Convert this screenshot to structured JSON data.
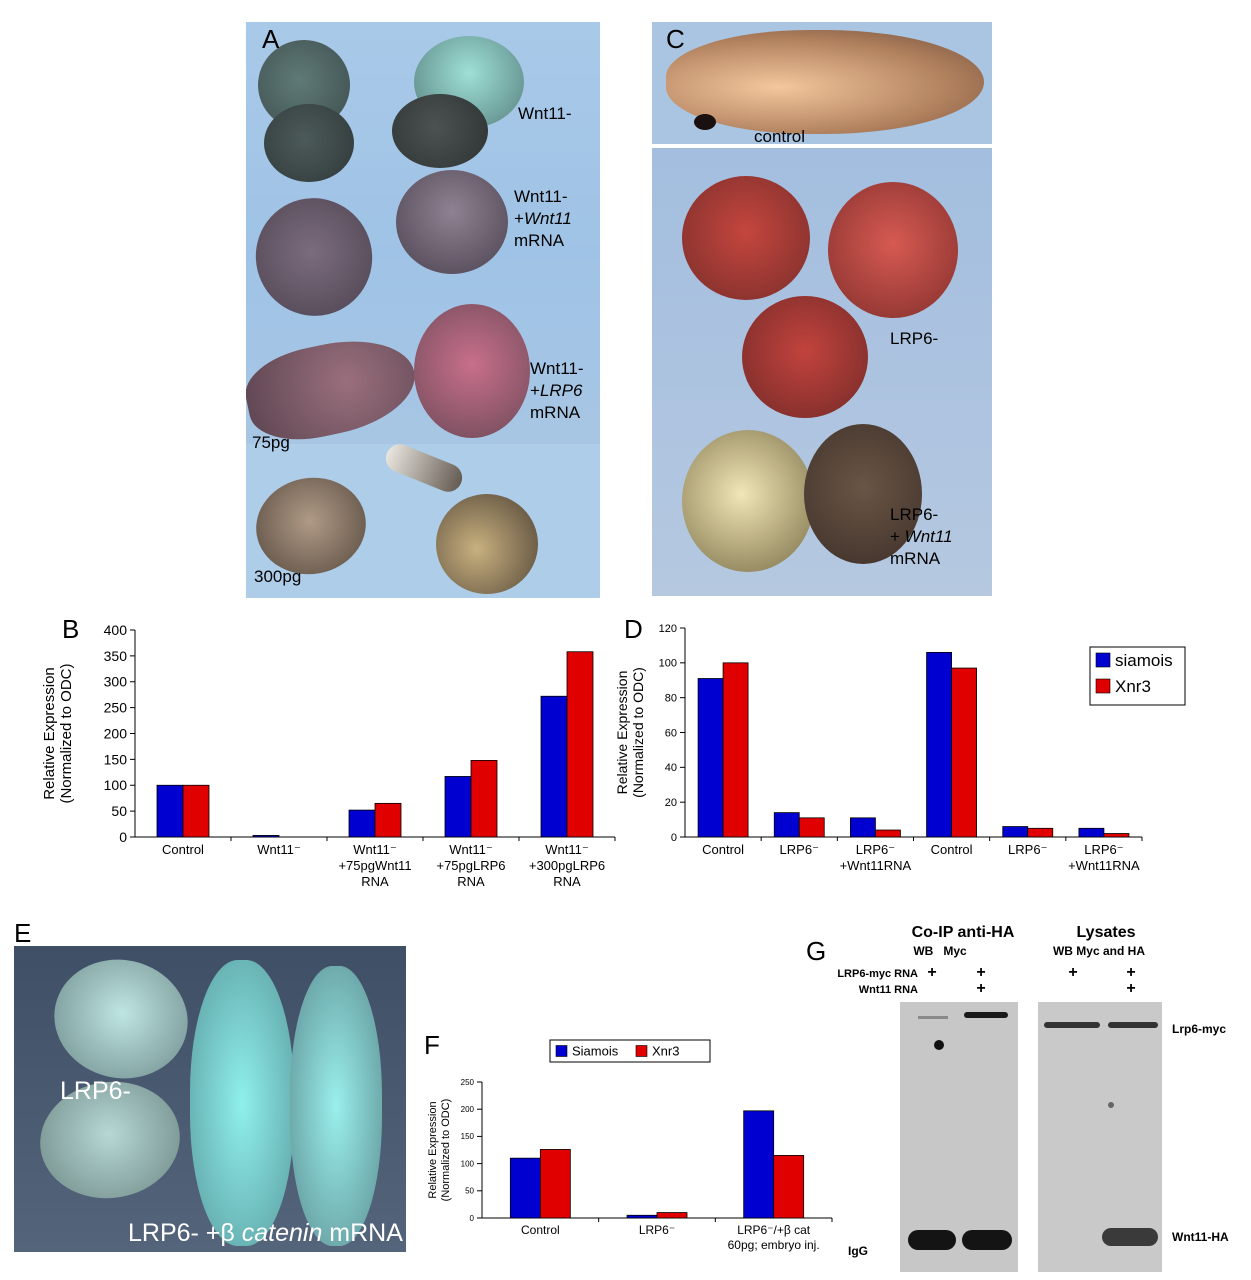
{
  "panels": {
    "A": {
      "letter": "A",
      "labels": {
        "wnt11_minus": "Wnt11-",
        "rescue_wnt11_line1": "Wnt11-",
        "rescue_wnt11_line2a": "+",
        "rescue_wnt11_line2b": "Wnt11",
        "rescue_wnt11_line3": "mRNA",
        "rescue_lrp6_line1": "Wnt11-",
        "rescue_lrp6_line2a": "+",
        "rescue_lrp6_line2b": "LRP6",
        "rescue_lrp6_line3": "mRNA",
        "dose_75": "75pg",
        "dose_300": "300pg"
      }
    },
    "B": {
      "letter": "B"
    },
    "C": {
      "letter": "C",
      "labels": {
        "control": "control",
        "lrp6_minus": "LRP6-",
        "rescue_line1": "LRP6-",
        "rescue_line2a": "+ ",
        "rescue_line2b": "Wnt11",
        "rescue_line3": "mRNA"
      }
    },
    "D": {
      "letter": "D"
    },
    "E": {
      "letter": "E",
      "labels": {
        "lrp6_minus": "LRP6-",
        "rescue_a": "LRP6- +β ",
        "rescue_b": "catenin",
        "rescue_c": " mRNA"
      }
    },
    "F": {
      "letter": "F"
    },
    "G": {
      "letter": "G",
      "coip_title": "Co-IP anti-HA",
      "coip_sub": "WB   Myc",
      "lysates_title": "Lysates",
      "lysates_sub": "WB Myc and HA",
      "row1_label": "LRP6-myc RNA",
      "row2_label": "Wnt11 RNA",
      "plus": "+",
      "band_top": "Lrp6-myc",
      "band_bottom": "Wnt11-HA",
      "igg": "IgG"
    }
  },
  "chart_data": [
    {
      "panel": "B",
      "type": "bar",
      "ylabel": "Relative Expression",
      "ylabel2": "(Normalized to ODC)",
      "ylim": [
        0,
        400
      ],
      "yticks": [
        0,
        50,
        100,
        150,
        200,
        250,
        300,
        350,
        400
      ],
      "categories": [
        [
          "Control"
        ],
        [
          "Wnt11⁻"
        ],
        [
          "Wnt11⁻",
          "+75pgWnt11",
          "RNA"
        ],
        [
          "Wnt11⁻",
          "+75pgLRP6",
          "RNA"
        ],
        [
          "Wnt11⁻",
          "+300pgLRP6",
          "RNA"
        ]
      ],
      "series": [
        {
          "color": "#0000d0",
          "values": [
            100,
            3,
            52,
            117,
            272
          ]
        },
        {
          "color": "#e00000",
          "values": [
            100,
            0,
            65,
            148,
            358
          ]
        }
      ]
    },
    {
      "panel": "D",
      "type": "bar",
      "ylabel": "Relative Expression",
      "ylabel2": "(Normalized to ODC)",
      "ylim": [
        0,
        120
      ],
      "yticks": [
        0,
        20,
        40,
        60,
        80,
        100,
        120
      ],
      "categories": [
        [
          "Control"
        ],
        [
          "LRP6⁻"
        ],
        [
          "LRP6⁻",
          "+Wnt11RNA"
        ],
        [
          "Control"
        ],
        [
          "LRP6⁻"
        ],
        [
          "LRP6⁻",
          "+Wnt11RNA"
        ]
      ],
      "legend": [
        "siamois",
        "Xnr3"
      ],
      "series": [
        {
          "name": "siamois",
          "color": "#0000d0",
          "values": [
            91,
            14,
            11,
            106,
            6,
            5
          ]
        },
        {
          "name": "Xnr3",
          "color": "#e00000",
          "values": [
            100,
            11,
            4,
            97,
            5,
            2
          ]
        }
      ]
    },
    {
      "panel": "F",
      "type": "bar",
      "ylabel": "Relative Expression",
      "ylabel2": "(Normalized to ODC)",
      "ylim": [
        0,
        250
      ],
      "yticks": [
        0,
        50,
        100,
        150,
        200,
        250
      ],
      "categories": [
        [
          "Control"
        ],
        [
          "LRP6⁻"
        ],
        [
          "LRP6⁻/+β cat",
          "60pg; embryo inj."
        ]
      ],
      "legend": [
        "Siamois",
        "Xnr3"
      ],
      "series": [
        {
          "name": "Siamois",
          "color": "#0000d0",
          "values": [
            110,
            5,
            197
          ]
        },
        {
          "name": "Xnr3",
          "color": "#e00000",
          "values": [
            126,
            10,
            115
          ]
        }
      ]
    }
  ]
}
